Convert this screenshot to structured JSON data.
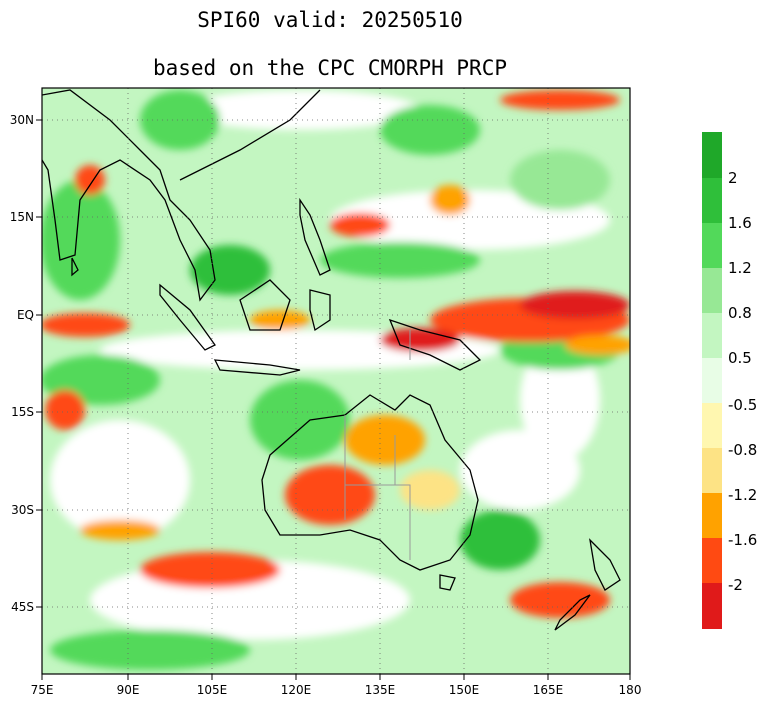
{
  "title": "SPI60  valid: 20250510",
  "subtitle": "based on the CPC CMORPH PRCP",
  "map": {
    "extent": {
      "lon": [
        75,
        180
      ],
      "lat": [
        -53,
        35
      ]
    },
    "lon_ticks": [
      "75E",
      "90E",
      "105E",
      "120E",
      "135E",
      "150E",
      "165E",
      "180"
    ],
    "lat_ticks": [
      "30N",
      "15N",
      "EQ",
      "15S",
      "30S",
      "45S"
    ],
    "grid": "dotted"
  },
  "colorbar": {
    "wet": [
      {
        "label": "",
        "color": "#1fa829"
      },
      {
        "label": "2",
        "color": "#2fbf3a"
      },
      {
        "label": "1.6",
        "color": "#52d95a"
      },
      {
        "label": "1.2",
        "color": "#97e895"
      },
      {
        "label": "0.8",
        "color": "#c3f6c1"
      },
      {
        "label": "0.5",
        "color": "#e8fde6"
      }
    ],
    "dry": [
      {
        "label": "-0.5",
        "color": "#fff7b0"
      },
      {
        "label": "-0.8",
        "color": "#fde385"
      },
      {
        "label": "-1.2",
        "color": "#ffa200"
      },
      {
        "label": "-1.6",
        "color": "#ff4a12"
      },
      {
        "label": "-2",
        "color": "#e01a1a"
      },
      {
        "label": "",
        "color": "#d01010"
      }
    ]
  },
  "colors": {
    "land_gray": "#a8a8a8",
    "coast": "#000000",
    "border": "#999999"
  }
}
